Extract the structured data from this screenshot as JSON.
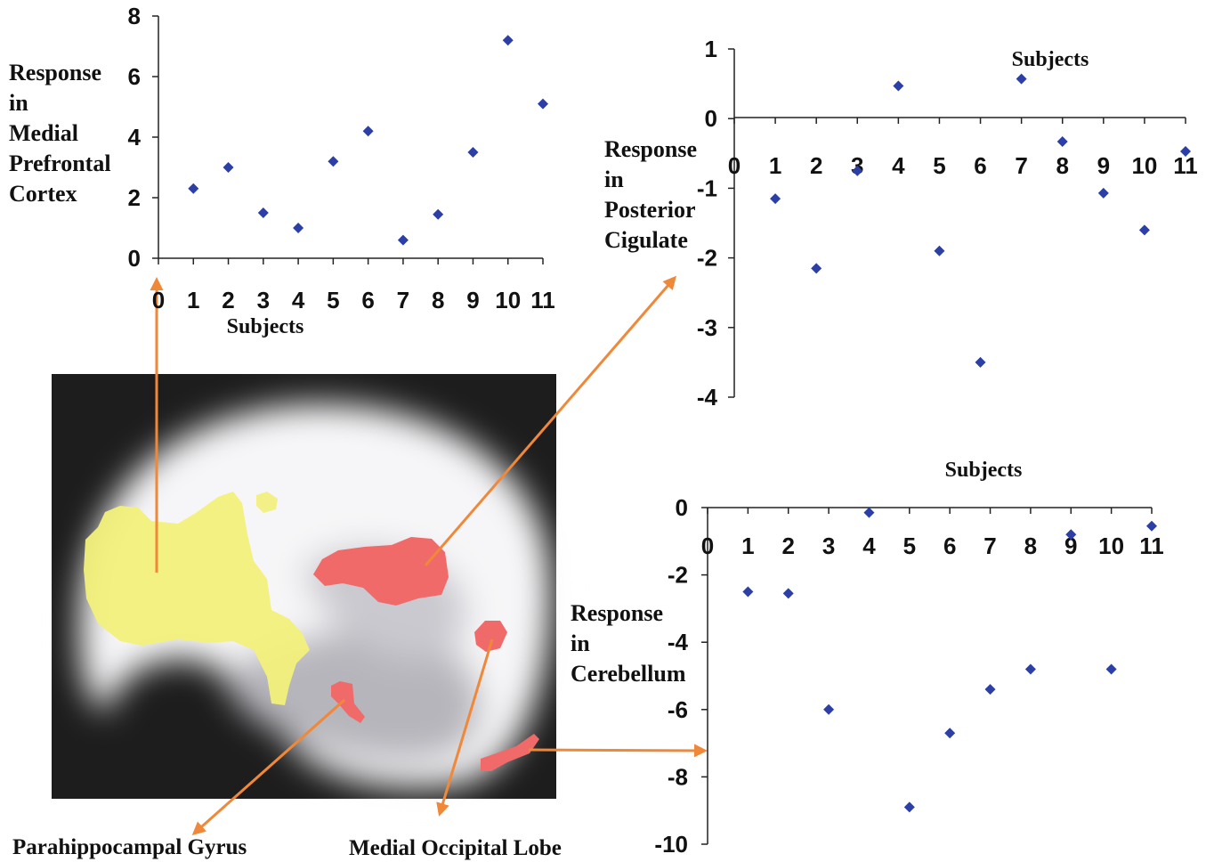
{
  "colors": {
    "marker": "#2b3fa6",
    "arrow": "#f0883a",
    "activation_yellow": "#f2f07a",
    "activation_red": "#f06a6a",
    "brain_background": "#1d1d1d"
  },
  "regions": {
    "parahippocampal": "Parahippocampal Gyrus",
    "occipital": "Medial Occipital Lobe"
  },
  "chart_data": [
    {
      "type": "scatter",
      "title": "",
      "xlabel": "Subjects",
      "ylabel_lines": [
        "Response",
        "in",
        "Medial",
        "Prefrontal",
        "Cortex"
      ],
      "x_ticks": [
        "0",
        "1",
        "2",
        "3",
        "4",
        "5",
        "6",
        "7",
        "8",
        "9",
        "10",
        "11"
      ],
      "y_ticks": [
        "0",
        "2",
        "4",
        "6",
        "8"
      ],
      "xlim": [
        0,
        11
      ],
      "ylim": [
        0,
        8
      ],
      "x": [
        1,
        2,
        3,
        4,
        5,
        6,
        7,
        8,
        9,
        10,
        11
      ],
      "y": [
        2.3,
        3.0,
        1.5,
        1.0,
        3.2,
        4.2,
        0.6,
        1.45,
        3.5,
        7.2,
        5.1
      ]
    },
    {
      "type": "scatter",
      "title": "",
      "xlabel": "Subjects",
      "ylabel_lines": [
        "Response",
        "in",
        "Posterior",
        "Cigulate"
      ],
      "x_ticks": [
        "0",
        "1",
        "2",
        "3",
        "4",
        "5",
        "6",
        "7",
        "8",
        "9",
        "10",
        "11"
      ],
      "y_ticks": [
        "1",
        "0",
        "-1",
        "-2",
        "-3",
        "-4"
      ],
      "xlim": [
        0,
        11
      ],
      "ylim": [
        -4,
        1
      ],
      "x": [
        1,
        2,
        3,
        4,
        5,
        6,
        7,
        8,
        9,
        10,
        11
      ],
      "y": [
        -1.15,
        -2.15,
        -0.75,
        0.47,
        -1.9,
        -3.5,
        0.57,
        -0.33,
        -1.07,
        -1.6,
        -0.47
      ]
    },
    {
      "type": "scatter",
      "title": "",
      "xlabel": "Subjects",
      "ylabel_lines": [
        "Response",
        "in",
        "Cerebellum"
      ],
      "x_ticks": [
        "0",
        "1",
        "2",
        "3",
        "4",
        "5",
        "6",
        "7",
        "8",
        "9",
        "10",
        "11"
      ],
      "y_ticks": [
        "0",
        "-2",
        "-4",
        "-6",
        "-8",
        "-10"
      ],
      "xlim": [
        0,
        11
      ],
      "ylim": [
        -10,
        0
      ],
      "x": [
        1,
        2,
        3,
        4,
        5,
        6,
        7,
        8,
        9,
        10,
        11
      ],
      "y": [
        -2.5,
        -2.55,
        -6.0,
        -0.15,
        -8.9,
        -6.7,
        -5.4,
        -4.8,
        -0.8,
        -4.8,
        -0.55
      ]
    }
  ]
}
